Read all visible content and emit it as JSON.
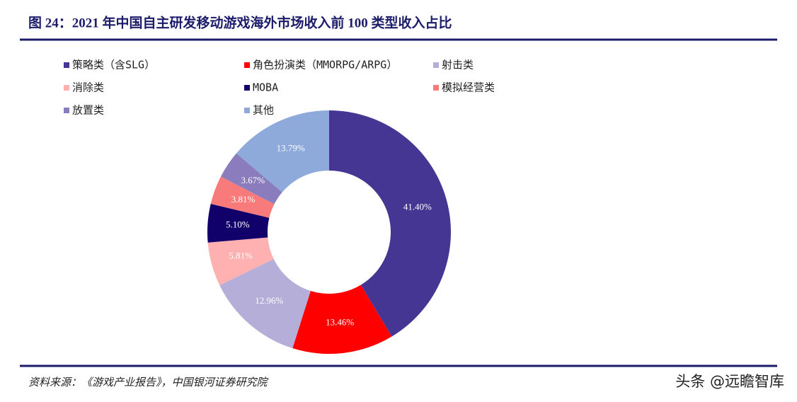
{
  "chart_data": {
    "type": "donut",
    "title": "图 24：2021 年中国自主研发移动游戏海外市场收入前 100 类型收入占比",
    "categories": [
      "策略类（含SLG）",
      "角色扮演类（MMORPG/ARPG）",
      "射击类",
      "消除类",
      "MOBA",
      "模拟经营类",
      "放置类",
      "其他"
    ],
    "values": [
      41.4,
      13.46,
      12.96,
      5.81,
      5.1,
      3.81,
      3.67,
      13.79
    ],
    "value_labels": [
      "41.40%",
      "13.46%",
      "12.96%",
      "5.81%",
      "5.10%",
      "3.81%",
      "3.67%",
      "13.79%"
    ],
    "colors": [
      "#453694",
      "#ff0000",
      "#b5aed8",
      "#ffb0b0",
      "#12006a",
      "#f87a7a",
      "#8a7cbd",
      "#8eaadb"
    ],
    "source": "资料来源：《游戏产业报告》，中国银河证券研究院",
    "watermark": "头条 @远瞻智库"
  }
}
